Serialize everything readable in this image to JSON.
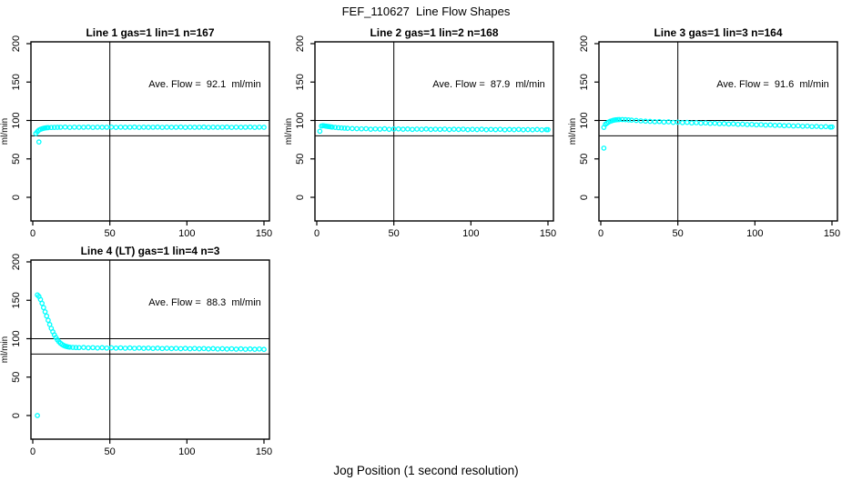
{
  "page": {
    "title": "FEF_110627  Line Flow Shapes",
    "xlabel": "Jog Position (1 second resolution)",
    "background": "#FFFFFF"
  },
  "style": {
    "point_color": "#00FFFF",
    "axis_color": "#000000",
    "text_color": "#000000"
  },
  "chart_data": [
    {
      "type": "scatter",
      "marker": "open-circle",
      "title": "Line 1 gas=1 lin=1 n=167",
      "gas": 1,
      "lin": 1,
      "n": 167,
      "annotation": "Ave. Flow =  92.1  ml/min",
      "ave_flow": 92.1,
      "ylabel": "ml/min",
      "xticks": [
        0,
        50,
        100,
        150
      ],
      "yticks": [
        0,
        50,
        100,
        150,
        200
      ],
      "xlim": [
        0,
        150
      ],
      "ylim": [
        0,
        200
      ],
      "ref_lines_y": [
        80,
        100
      ],
      "ref_line_x": 50,
      "grid": false,
      "position": {
        "row": 0,
        "col": 0
      },
      "points": [
        [
          4,
          72
        ],
        [
          2,
          83
        ],
        [
          3,
          85.5
        ],
        [
          4,
          87.5
        ],
        [
          5,
          88.5
        ],
        [
          6,
          89.2
        ],
        [
          7,
          89.8
        ],
        [
          8,
          90.2
        ],
        [
          9,
          90.5
        ],
        [
          10,
          90.7
        ],
        [
          12,
          90.9
        ],
        [
          14,
          91
        ],
        [
          16,
          91.1
        ],
        [
          18,
          91.2
        ],
        [
          21,
          91.4
        ],
        [
          24,
          91
        ],
        [
          27,
          91.3
        ],
        [
          30,
          91.1
        ],
        [
          33,
          91.2
        ],
        [
          36,
          91.4
        ],
        [
          39,
          91
        ],
        [
          42,
          91.3
        ],
        [
          45,
          91.1
        ],
        [
          48,
          91.2
        ],
        [
          51,
          91.4
        ],
        [
          54,
          91
        ],
        [
          57,
          91.3
        ],
        [
          60,
          91.1
        ],
        [
          63,
          91.2
        ],
        [
          66,
          91.4
        ],
        [
          69,
          91
        ],
        [
          72,
          91.3
        ],
        [
          75,
          91.1
        ],
        [
          78,
          91.2
        ],
        [
          81,
          91.4
        ],
        [
          84,
          91
        ],
        [
          87,
          91.3
        ],
        [
          90,
          91.1
        ],
        [
          93,
          91.2
        ],
        [
          96,
          91.4
        ],
        [
          99,
          91
        ],
        [
          102,
          91.3
        ],
        [
          105,
          91.1
        ],
        [
          108,
          91.2
        ],
        [
          111,
          91.4
        ],
        [
          114,
          91
        ],
        [
          117,
          91.3
        ],
        [
          120,
          91.1
        ],
        [
          123,
          91.2
        ],
        [
          126,
          91.4
        ],
        [
          129,
          91
        ],
        [
          132,
          91.3
        ],
        [
          135,
          91.1
        ],
        [
          138,
          91.2
        ],
        [
          141,
          91.4
        ],
        [
          144,
          91
        ],
        [
          147,
          91.3
        ],
        [
          150,
          91.1
        ]
      ]
    },
    {
      "type": "scatter",
      "marker": "open-circle",
      "title": "Line 2 gas=1 lin=2 n=168",
      "gas": 1,
      "lin": 2,
      "n": 168,
      "annotation": "Ave. Flow =  87.9  ml/min",
      "ave_flow": 87.9,
      "ylabel": "ml/min",
      "xticks": [
        0,
        50,
        100,
        150
      ],
      "yticks": [
        0,
        50,
        100,
        150,
        200
      ],
      "xlim": [
        0,
        150
      ],
      "ylim": [
        0,
        200
      ],
      "ref_lines_y": [
        80,
        100
      ],
      "ref_line_x": 50,
      "grid": false,
      "position": {
        "row": 0,
        "col": 1
      },
      "points": [
        [
          2,
          86
        ],
        [
          3,
          92.8
        ],
        [
          4,
          93.2
        ],
        [
          5,
          93
        ],
        [
          6,
          92.6
        ],
        [
          7,
          92.3
        ],
        [
          8,
          92
        ],
        [
          9,
          91.7
        ],
        [
          10,
          91.4
        ],
        [
          12,
          91
        ],
        [
          14,
          90.6
        ],
        [
          16,
          90.3
        ],
        [
          18,
          90
        ],
        [
          20,
          89.8
        ],
        [
          23,
          89.5
        ],
        [
          26,
          89.3
        ],
        [
          29,
          89.1
        ],
        [
          32,
          89.3
        ],
        [
          35,
          88.6
        ],
        [
          38,
          89
        ],
        [
          41,
          88.7
        ],
        [
          44,
          89.2
        ],
        [
          47,
          88.5
        ],
        [
          50,
          88.9
        ],
        [
          53,
          89
        ],
        [
          56,
          88.6
        ],
        [
          59,
          88.9
        ],
        [
          62,
          88.4
        ],
        [
          65,
          88.8
        ],
        [
          68,
          88.5
        ],
        [
          71,
          88.9
        ],
        [
          74,
          88.3
        ],
        [
          77,
          88.7
        ],
        [
          80,
          88.4
        ],
        [
          83,
          88.8
        ],
        [
          86,
          88.2
        ],
        [
          89,
          88.6
        ],
        [
          92,
          88.3
        ],
        [
          95,
          88.7
        ],
        [
          98,
          88.1
        ],
        [
          101,
          88.5
        ],
        [
          104,
          88.2
        ],
        [
          107,
          88.6
        ],
        [
          110,
          88
        ],
        [
          113,
          88.4
        ],
        [
          116,
          88.1
        ],
        [
          119,
          88.5
        ],
        [
          122,
          87.9
        ],
        [
          125,
          88.3
        ],
        [
          128,
          88
        ],
        [
          131,
          88.4
        ],
        [
          134,
          87.9
        ],
        [
          137,
          88.2
        ],
        [
          140,
          87.9
        ],
        [
          143,
          88.3
        ],
        [
          146,
          87.8
        ],
        [
          149,
          88.1
        ],
        [
          150,
          88
        ]
      ]
    },
    {
      "type": "scatter",
      "marker": "open-circle",
      "title": "Line 3 gas=1 lin=3 n=164",
      "gas": 1,
      "lin": 3,
      "n": 164,
      "annotation": "Ave. Flow =  91.6  ml/min",
      "ave_flow": 91.6,
      "ylabel": "ml/min",
      "xticks": [
        0,
        50,
        100,
        150
      ],
      "yticks": [
        0,
        50,
        100,
        150,
        200
      ],
      "xlim": [
        0,
        150
      ],
      "ylim": [
        0,
        200
      ],
      "ref_lines_y": [
        80,
        100
      ],
      "ref_line_x": 50,
      "grid": false,
      "position": {
        "row": 0,
        "col": 2
      },
      "points": [
        [
          2,
          64
        ],
        [
          2,
          91
        ],
        [
          3,
          95
        ],
        [
          4,
          96.5
        ],
        [
          5,
          97.8
        ],
        [
          6,
          98.8
        ],
        [
          7,
          99.5
        ],
        [
          8,
          100.2
        ],
        [
          9,
          100.6
        ],
        [
          10,
          100.9
        ],
        [
          11,
          101.1
        ],
        [
          12,
          101.2
        ],
        [
          14,
          101.2
        ],
        [
          16,
          101
        ],
        [
          18,
          100.7
        ],
        [
          20,
          100.4
        ],
        [
          23,
          100
        ],
        [
          26,
          99.5
        ],
        [
          29,
          99.1
        ],
        [
          32,
          98.8
        ],
        [
          35,
          98.4
        ],
        [
          38,
          98.6
        ],
        [
          41,
          97.9
        ],
        [
          44,
          98.2
        ],
        [
          47,
          97.5
        ],
        [
          50,
          97.8
        ],
        [
          53,
          97.2
        ],
        [
          56,
          97.5
        ],
        [
          59,
          96.8
        ],
        [
          62,
          97.1
        ],
        [
          65,
          96.5
        ],
        [
          68,
          96.8
        ],
        [
          71,
          96.1
        ],
        [
          74,
          96.4
        ],
        [
          77,
          95.8
        ],
        [
          80,
          96
        ],
        [
          83,
          95.4
        ],
        [
          86,
          95.7
        ],
        [
          89,
          95
        ],
        [
          92,
          95.3
        ],
        [
          95,
          94.7
        ],
        [
          98,
          94.9
        ],
        [
          101,
          94.3
        ],
        [
          104,
          94.6
        ],
        [
          107,
          93.9
        ],
        [
          110,
          94.2
        ],
        [
          113,
          93.6
        ],
        [
          116,
          93.8
        ],
        [
          119,
          93.2
        ],
        [
          122,
          93.4
        ],
        [
          125,
          92.8
        ],
        [
          128,
          93.1
        ],
        [
          131,
          92.5
        ],
        [
          134,
          92.7
        ],
        [
          137,
          92.1
        ],
        [
          140,
          92.3
        ],
        [
          143,
          91.8
        ],
        [
          146,
          92
        ],
        [
          149,
          91.4
        ],
        [
          150,
          91.6
        ]
      ]
    },
    {
      "type": "scatter",
      "marker": "open-circle",
      "title": "Line 4 (LT) gas=1 lin=4 n=3",
      "gas": 1,
      "lin": 4,
      "n": 3,
      "annotation": "Ave. Flow =  88.3  ml/min",
      "ave_flow": 88.3,
      "ylabel": "ml/min",
      "xticks": [
        0,
        50,
        100,
        150
      ],
      "yticks": [
        0,
        50,
        100,
        150,
        200
      ],
      "xlim": [
        0,
        150
      ],
      "ylim": [
        0,
        200
      ],
      "ref_lines_y": [
        80,
        100
      ],
      "ref_line_x": 50,
      "grid": false,
      "position": {
        "row": 1,
        "col": 0
      },
      "points": [
        [
          3,
          0
        ],
        [
          3,
          157
        ],
        [
          4,
          155
        ],
        [
          5,
          151
        ],
        [
          6,
          146
        ],
        [
          7,
          140.5
        ],
        [
          8,
          135
        ],
        [
          9,
          129.5
        ],
        [
          10,
          124
        ],
        [
          11,
          118.5
        ],
        [
          12,
          113.5
        ],
        [
          13,
          109
        ],
        [
          14,
          105
        ],
        [
          15,
          101.5
        ],
        [
          16,
          98.5
        ],
        [
          17,
          96
        ],
        [
          18,
          94
        ],
        [
          19,
          92.5
        ],
        [
          20,
          91.3
        ],
        [
          21,
          90.4
        ],
        [
          22,
          89.8
        ],
        [
          23,
          89.3
        ],
        [
          24,
          89
        ],
        [
          26,
          88.7
        ],
        [
          28,
          88.5
        ],
        [
          30,
          88.4
        ],
        [
          33,
          88.6
        ],
        [
          36,
          88.1
        ],
        [
          39,
          88.4
        ],
        [
          42,
          87.9
        ],
        [
          45,
          88.3
        ],
        [
          48,
          87.8
        ],
        [
          51,
          88.2
        ],
        [
          54,
          87.7
        ],
        [
          57,
          88.1
        ],
        [
          60,
          87.6
        ],
        [
          63,
          88
        ],
        [
          66,
          87.5
        ],
        [
          69,
          87.9
        ],
        [
          72,
          87.4
        ],
        [
          75,
          87.8
        ],
        [
          78,
          87.3
        ],
        [
          81,
          87.7
        ],
        [
          84,
          87.2
        ],
        [
          87,
          87.6
        ],
        [
          90,
          87.1
        ],
        [
          93,
          87.5
        ],
        [
          96,
          87
        ],
        [
          99,
          87.4
        ],
        [
          102,
          86.9
        ],
        [
          105,
          87.3
        ],
        [
          108,
          86.8
        ],
        [
          111,
          87.2
        ],
        [
          114,
          86.7
        ],
        [
          117,
          87.1
        ],
        [
          120,
          86.6
        ],
        [
          123,
          87
        ],
        [
          126,
          86.5
        ],
        [
          129,
          86.9
        ],
        [
          132,
          86.4
        ],
        [
          135,
          86.8
        ],
        [
          138,
          86.3
        ],
        [
          141,
          86.7
        ],
        [
          144,
          86.2
        ],
        [
          147,
          86.6
        ],
        [
          150,
          86.1
        ]
      ]
    }
  ]
}
